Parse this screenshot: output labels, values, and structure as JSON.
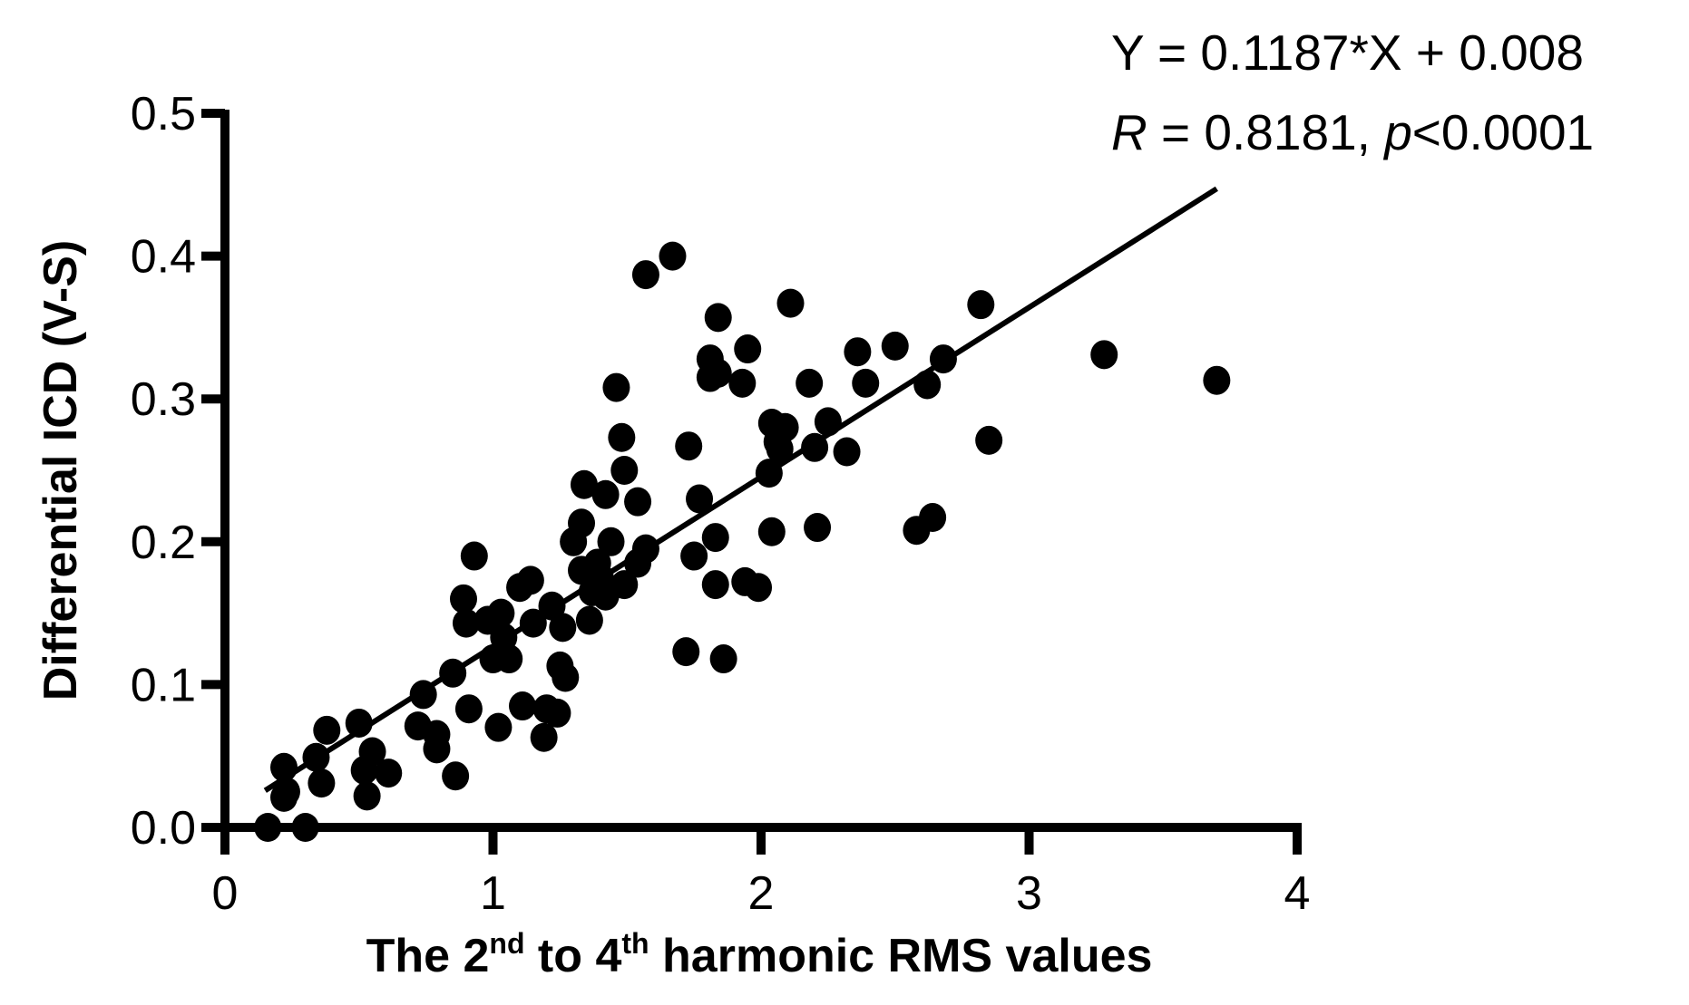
{
  "chart_data": {
    "type": "scatter",
    "title": "",
    "xlabel": "The 2nd to 4th harmonic RMS values",
    "xlabel_parts": {
      "pre": "The 2",
      "sup1": "nd",
      "mid": " to 4",
      "sup2": "th",
      "post": " harmonic RMS values"
    },
    "ylabel": "Differential ICD (V-S)",
    "xlim": [
      0,
      4
    ],
    "ylim": [
      0.0,
      0.5
    ],
    "x_ticks": [
      "0",
      "1",
      "2",
      "3",
      "4"
    ],
    "y_ticks": [
      "0.0",
      "0.1",
      "0.2",
      "0.3",
      "0.4",
      "0.5"
    ],
    "grid": false,
    "legend": null,
    "annotations": {
      "equation": "Y = 0.1187*X + 0.008",
      "r_label": "R",
      "r_value": " = 0.8181, ",
      "p_label": "p",
      "p_value": "<0.0001"
    },
    "regression": {
      "slope": 0.1187,
      "intercept": 0.008,
      "x_start": 0.15,
      "x_end": 3.7
    },
    "marker_color": "#000000",
    "points": [
      [
        0.16,
        0.0
      ],
      [
        0.3,
        0.0
      ],
      [
        0.22,
        0.021
      ],
      [
        0.23,
        0.025
      ],
      [
        0.22,
        0.042
      ],
      [
        0.34,
        0.049
      ],
      [
        0.36,
        0.031
      ],
      [
        0.38,
        0.068
      ],
      [
        0.5,
        0.073
      ],
      [
        0.52,
        0.04
      ],
      [
        0.53,
        0.022
      ],
      [
        0.55,
        0.053
      ],
      [
        0.61,
        0.038
      ],
      [
        0.72,
        0.071
      ],
      [
        0.74,
        0.093
      ],
      [
        0.79,
        0.065
      ],
      [
        0.79,
        0.055
      ],
      [
        0.85,
        0.108
      ],
      [
        0.86,
        0.036
      ],
      [
        0.89,
        0.16
      ],
      [
        0.9,
        0.143
      ],
      [
        0.91,
        0.083
      ],
      [
        0.93,
        0.19
      ],
      [
        0.98,
        0.145
      ],
      [
        1.0,
        0.118
      ],
      [
        1.02,
        0.07
      ],
      [
        1.03,
        0.15
      ],
      [
        1.04,
        0.133
      ],
      [
        1.06,
        0.118
      ],
      [
        1.1,
        0.168
      ],
      [
        1.11,
        0.085
      ],
      [
        1.14,
        0.173
      ],
      [
        1.15,
        0.143
      ],
      [
        1.19,
        0.063
      ],
      [
        1.2,
        0.083
      ],
      [
        1.22,
        0.155
      ],
      [
        1.24,
        0.08
      ],
      [
        1.25,
        0.113
      ],
      [
        1.26,
        0.14
      ],
      [
        1.27,
        0.105
      ],
      [
        1.3,
        0.2
      ],
      [
        1.33,
        0.213
      ],
      [
        1.33,
        0.18
      ],
      [
        1.34,
        0.24
      ],
      [
        1.36,
        0.145
      ],
      [
        1.37,
        0.165
      ],
      [
        1.39,
        0.185
      ],
      [
        1.4,
        0.175
      ],
      [
        1.42,
        0.233
      ],
      [
        1.42,
        0.162
      ],
      [
        1.44,
        0.2
      ],
      [
        1.46,
        0.308
      ],
      [
        1.48,
        0.273
      ],
      [
        1.49,
        0.25
      ],
      [
        1.49,
        0.17
      ],
      [
        1.54,
        0.228
      ],
      [
        1.54,
        0.185
      ],
      [
        1.57,
        0.195
      ],
      [
        1.57,
        0.387
      ],
      [
        1.67,
        0.4
      ],
      [
        1.72,
        0.123
      ],
      [
        1.73,
        0.267
      ],
      [
        1.75,
        0.19
      ],
      [
        1.77,
        0.23
      ],
      [
        1.81,
        0.328
      ],
      [
        1.81,
        0.315
      ],
      [
        1.83,
        0.17
      ],
      [
        1.83,
        0.203
      ],
      [
        1.84,
        0.357
      ],
      [
        1.84,
        0.318
      ],
      [
        1.86,
        0.118
      ],
      [
        1.93,
        0.311
      ],
      [
        1.94,
        0.172
      ],
      [
        1.95,
        0.335
      ],
      [
        1.99,
        0.168
      ],
      [
        2.03,
        0.248
      ],
      [
        2.04,
        0.207
      ],
      [
        2.04,
        0.283
      ],
      [
        2.06,
        0.27
      ],
      [
        2.07,
        0.265
      ],
      [
        2.09,
        0.28
      ],
      [
        2.11,
        0.367
      ],
      [
        2.18,
        0.311
      ],
      [
        2.2,
        0.266
      ],
      [
        2.21,
        0.21
      ],
      [
        2.25,
        0.284
      ],
      [
        2.32,
        0.263
      ],
      [
        2.36,
        0.333
      ],
      [
        2.39,
        0.311
      ],
      [
        2.5,
        0.337
      ],
      [
        2.58,
        0.208
      ],
      [
        2.62,
        0.31
      ],
      [
        2.64,
        0.217
      ],
      [
        2.68,
        0.328
      ],
      [
        2.82,
        0.366
      ],
      [
        2.85,
        0.271
      ],
      [
        3.28,
        0.331
      ],
      [
        3.7,
        0.313
      ]
    ]
  }
}
